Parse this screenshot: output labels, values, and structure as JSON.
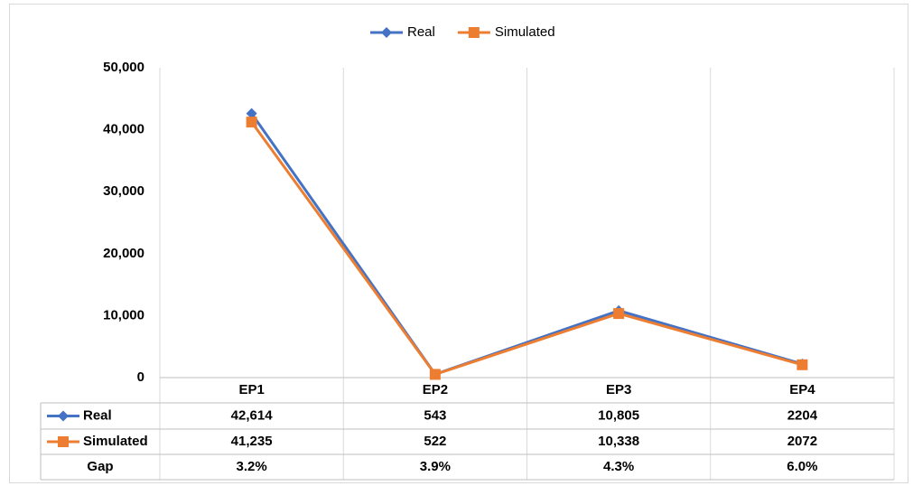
{
  "chart_data": {
    "type": "line",
    "categories": [
      "EP1",
      "EP2",
      "EP3",
      "EP4"
    ],
    "series": [
      {
        "name": "Real",
        "color": "#4472c4",
        "marker": "diamond",
        "values": [
          42614,
          543,
          10805,
          2204
        ],
        "value_labels": [
          "42,614",
          "543",
          "10,805",
          "2204"
        ]
      },
      {
        "name": "Simulated",
        "color": "#ed7d31",
        "marker": "square",
        "values": [
          41235,
          522,
          10338,
          2072
        ],
        "value_labels": [
          "41,235",
          "522",
          "10,338",
          "2072"
        ]
      }
    ],
    "gap": {
      "name": "Gap",
      "values": [
        3.2,
        3.9,
        4.3,
        6.0
      ],
      "value_labels": [
        "3.2%",
        "3.9%",
        "4.3%",
        "6.0%"
      ]
    },
    "ylim": [
      0,
      50000
    ],
    "yticks": [
      0,
      {
        "value": 10000,
        "label": "10,000"
      },
      {
        "value": 20000,
        "label": "20,000"
      },
      {
        "value": 30000,
        "label": "30,000"
      },
      {
        "value": 40000,
        "label": "40,000"
      },
      {
        "value": 50000,
        "label": "50,000"
      }
    ],
    "legend": "top"
  }
}
